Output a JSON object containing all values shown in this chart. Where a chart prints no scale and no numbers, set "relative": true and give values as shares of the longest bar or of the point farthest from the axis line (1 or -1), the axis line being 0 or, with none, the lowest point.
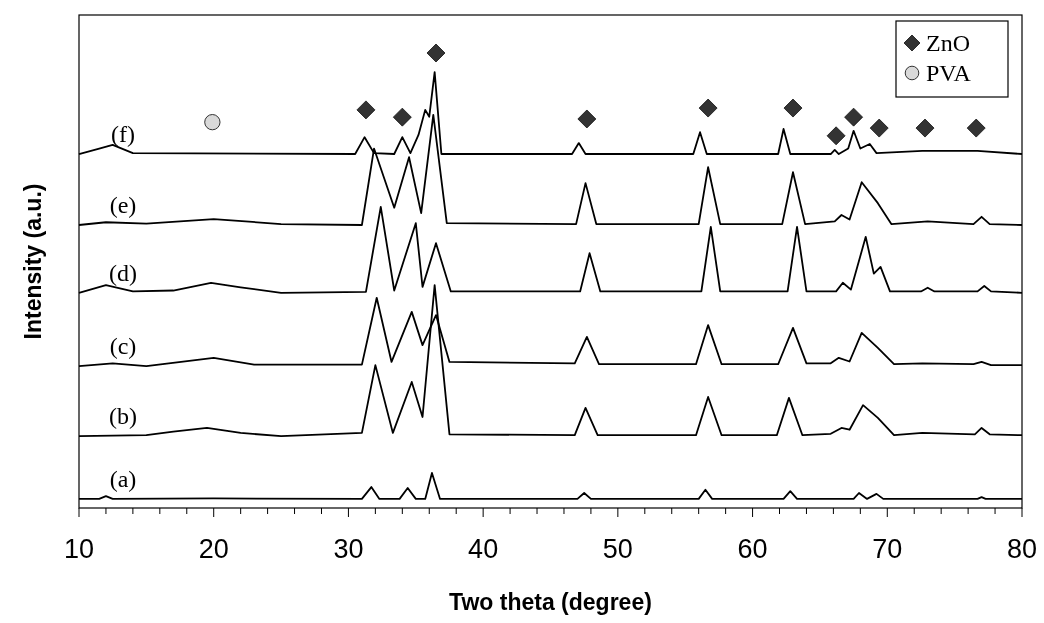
{
  "chart_data": {
    "type": "line",
    "xlabel": "Two theta (degree)",
    "ylabel": "Intensity (a.u.)",
    "relative": true,
    "xlim": [
      10,
      80
    ],
    "xticks": [
      10,
      {
        "value": 12,
        "label": null
      },
      {
        "value": 14,
        "label": null
      },
      {
        "value": 16,
        "label": null
      },
      {
        "value": 18,
        "label": null
      },
      20,
      {
        "value": 22,
        "label": null
      },
      {
        "value": 24,
        "label": null
      },
      {
        "value": 26,
        "label": null
      },
      {
        "value": 28,
        "label": null
      },
      30,
      {
        "value": 32,
        "label": null
      },
      {
        "value": 34,
        "label": null
      },
      {
        "value": 36,
        "label": null
      },
      {
        "value": 38,
        "label": null
      },
      40,
      {
        "value": 42,
        "label": null
      },
      {
        "value": 44,
        "label": null
      },
      {
        "value": 46,
        "label": null
      },
      {
        "value": 48,
        "label": null
      },
      50,
      {
        "value": 52,
        "label": null
      },
      {
        "value": 54,
        "label": null
      },
      {
        "value": 56,
        "label": null
      },
      {
        "value": 58,
        "label": null
      },
      60,
      {
        "value": 62,
        "label": null
      },
      {
        "value": 64,
        "label": null
      },
      {
        "value": 66,
        "label": null
      },
      {
        "value": 68,
        "label": null
      },
      70,
      {
        "value": 72,
        "label": null
      },
      {
        "value": 74,
        "label": null
      },
      {
        "value": 76,
        "label": null
      },
      {
        "value": 78,
        "label": null
      },
      80
    ],
    "grid": false,
    "legend": "top right",
    "line_style": "solid",
    "series": [
      {
        "name": "(a)",
        "color": "#000000",
        "x": [
          10,
          11.5,
          12,
          12.5,
          20,
          31,
          31.7,
          32.3,
          33.8,
          34.4,
          35,
          35.7,
          36.2,
          36.8,
          47,
          47.5,
          48,
          56,
          56.5,
          57,
          62.3,
          62.8,
          63.3,
          67.5,
          67.9,
          68.5,
          69.2,
          69.7,
          76.7,
          77,
          77.3,
          80
        ],
        "values": [
          0.02,
          0.02,
          0.026,
          0.02,
          0.021,
          0.02,
          0.046,
          0.02,
          0.02,
          0.044,
          0.02,
          0.02,
          0.077,
          0.02,
          0.02,
          0.033,
          0.02,
          0.02,
          0.04,
          0.02,
          0.02,
          0.037,
          0.02,
          0.02,
          0.033,
          0.02,
          0.031,
          0.02,
          0.02,
          0.024,
          0.02,
          0.02
        ]
      },
      {
        "name": "(b)",
        "color": "#000000",
        "x": [
          10,
          15,
          17,
          19.5,
          22,
          25,
          31,
          32,
          33.3,
          34.7,
          35.5,
          36.4,
          37.5,
          46.8,
          47.6,
          48.5,
          55.8,
          56.7,
          57.7,
          61.8,
          62.7,
          63.7,
          65.8,
          66.6,
          67.2,
          68.2,
          69.3,
          70.5,
          72.6,
          76.5,
          77,
          77.6,
          80
        ],
        "values": [
          0.158,
          0.16,
          0.168,
          0.176,
          0.165,
          0.158,
          0.165,
          0.314,
          0.165,
          0.277,
          0.2,
          0.49,
          0.162,
          0.16,
          0.22,
          0.16,
          0.16,
          0.244,
          0.16,
          0.16,
          0.242,
          0.16,
          0.163,
          0.176,
          0.172,
          0.226,
          0.198,
          0.16,
          0.165,
          0.162,
          0.176,
          0.162,
          0.16
        ]
      },
      {
        "name": "(c)",
        "color": "#000000",
        "x": [
          10,
          12.5,
          15,
          20,
          23,
          31,
          32.1,
          33.2,
          34.7,
          35.5,
          36.5,
          37.5,
          46.8,
          47.7,
          48.6,
          55.8,
          56.7,
          57.7,
          61.9,
          63,
          64,
          65.8,
          66.4,
          67.2,
          68.1,
          69.3,
          70.5,
          72.6,
          76.4,
          77,
          77.7,
          80
        ],
        "values": [
          0.312,
          0.318,
          0.312,
          0.33,
          0.315,
          0.315,
          0.462,
          0.321,
          0.431,
          0.358,
          0.424,
          0.321,
          0.318,
          0.376,
          0.316,
          0.316,
          0.402,
          0.316,
          0.316,
          0.396,
          0.318,
          0.318,
          0.33,
          0.322,
          0.385,
          0.352,
          0.316,
          0.318,
          0.316,
          0.321,
          0.314,
          0.314
        ]
      },
      {
        "name": "(d)",
        "color": "#000000",
        "x": [
          10,
          12,
          14,
          17,
          19.8,
          22,
          25,
          31.3,
          32.4,
          33.4,
          35,
          35.5,
          36.5,
          37.6,
          47.2,
          47.9,
          48.7,
          56.2,
          56.9,
          57.6,
          62.6,
          63.3,
          64,
          66.2,
          66.7,
          67.3,
          68.4,
          69,
          69.5,
          70.2,
          72.5,
          73,
          73.5,
          76.7,
          77.2,
          77.7,
          80
        ],
        "values": [
          0.473,
          0.49,
          0.476,
          0.478,
          0.495,
          0.485,
          0.473,
          0.475,
          0.662,
          0.478,
          0.626,
          0.486,
          0.582,
          0.476,
          0.476,
          0.56,
          0.476,
          0.476,
          0.618,
          0.476,
          0.476,
          0.618,
          0.476,
          0.476,
          0.495,
          0.48,
          0.596,
          0.515,
          0.53,
          0.476,
          0.476,
          0.484,
          0.476,
          0.476,
          0.488,
          0.476,
          0.473
        ]
      },
      {
        "name": "(e)",
        "color": "#000000",
        "x": [
          10,
          12,
          15,
          20,
          25,
          31,
          31.9,
          33.4,
          34.5,
          35.4,
          36.3,
          37.3,
          46.9,
          47.6,
          48.4,
          56,
          56.7,
          57.6,
          62.2,
          63,
          63.9,
          66.1,
          66.6,
          67.2,
          68.1,
          69.3,
          70.3,
          73,
          76.4,
          77,
          77.6,
          80
        ],
        "values": [
          0.622,
          0.628,
          0.625,
          0.635,
          0.624,
          0.622,
          0.79,
          0.66,
          0.771,
          0.648,
          0.864,
          0.626,
          0.624,
          0.714,
          0.624,
          0.624,
          0.749,
          0.624,
          0.624,
          0.738,
          0.624,
          0.63,
          0.644,
          0.634,
          0.716,
          0.67,
          0.624,
          0.63,
          0.624,
          0.64,
          0.624,
          0.622
        ]
      },
      {
        "name": "(f)",
        "color": "#000000",
        "x": [
          10,
          11.5,
          12.5,
          14,
          30.5,
          31.2,
          31.9,
          33.4,
          34,
          34.6,
          35.2,
          35.7,
          36,
          36.4,
          36.9,
          46.6,
          47.1,
          47.6,
          55.6,
          56.1,
          56.6,
          61.9,
          62.3,
          62.8,
          65.8,
          66.1,
          66.4,
          67.1,
          67.5,
          68,
          68.7,
          69.2,
          72.6,
          76.7,
          80
        ],
        "values": [
          0.778,
          0.79,
          0.798,
          0.78,
          0.778,
          0.815,
          0.78,
          0.778,
          0.815,
          0.78,
          0.82,
          0.875,
          0.86,
          0.958,
          0.778,
          0.778,
          0.802,
          0.778,
          0.778,
          0.826,
          0.778,
          0.778,
          0.833,
          0.778,
          0.778,
          0.787,
          0.778,
          0.79,
          0.829,
          0.79,
          0.8,
          0.78,
          0.785,
          0.785,
          0.778
        ]
      },
      {
        "name": "ZnO",
        "type": "scatter",
        "marker": "diamond",
        "color": "#333333",
        "x": [
          31.3,
          34.0,
          36.5,
          47.7,
          56.7,
          63.0,
          66.2,
          67.5,
          69.4,
          72.8,
          76.6
        ],
        "values": [
          0.875,
          0.859,
          1,
          0.855,
          0.879,
          0.879,
          0.818,
          0.859,
          0.835,
          0.835,
          0.835
        ]
      },
      {
        "name": "PVA",
        "type": "scatter",
        "marker": "circle",
        "color": "#d9d9d9",
        "x": [
          19.9
        ],
        "values": [
          0.848
        ]
      }
    ]
  }
}
